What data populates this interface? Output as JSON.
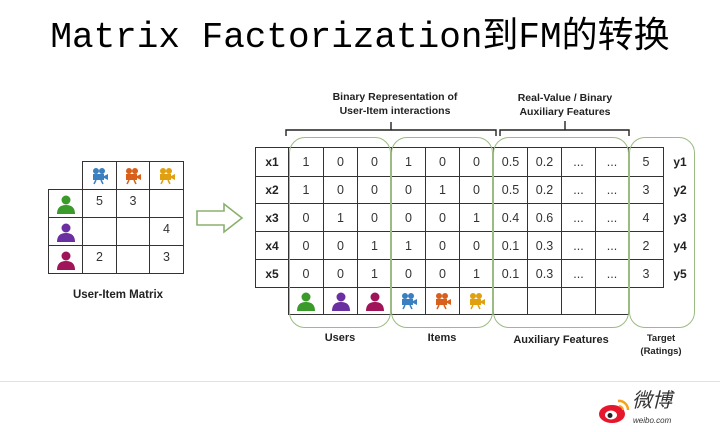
{
  "title": "Matrix Factorization到FM的转换",
  "colors": {
    "user1": "#3a9a2a",
    "user2": "#6a2fa0",
    "user3": "#a0145a",
    "item1": "#3a7fc0",
    "item2": "#d8601a",
    "item3": "#e0a010",
    "group_border": "#9bbb82",
    "divider": "#d6e6ee"
  },
  "user_item_matrix": {
    "caption": "User-Item Matrix",
    "column_icons": [
      "camera-icon",
      "camera-icon",
      "camera-icon"
    ],
    "row_icons": [
      "user-icon",
      "user-icon",
      "user-icon"
    ],
    "rows": [
      [
        "5",
        "3",
        ""
      ],
      [
        "",
        "",
        "4"
      ],
      [
        "2",
        "",
        "3"
      ]
    ]
  },
  "arrow": "right-arrow-icon",
  "fm_table": {
    "header_binary": [
      "Binary Representation of",
      "User-Item interactions"
    ],
    "header_aux": [
      "Real-Value / Binary",
      "Auxiliary Features"
    ],
    "row_labels": [
      "x1",
      "x2",
      "x3",
      "x4",
      "x5"
    ],
    "target_labels": [
      "y1",
      "y2",
      "y3",
      "y4",
      "y5"
    ],
    "rows": [
      [
        "1",
        "0",
        "0",
        "1",
        "0",
        "0",
        "0.5",
        "0.2",
        "...",
        "...",
        "5"
      ],
      [
        "1",
        "0",
        "0",
        "0",
        "1",
        "0",
        "0.5",
        "0.2",
        "...",
        "...",
        "3"
      ],
      [
        "0",
        "1",
        "0",
        "0",
        "0",
        "1",
        "0.4",
        "0.6",
        "...",
        "...",
        "4"
      ],
      [
        "0",
        "0",
        "1",
        "1",
        "0",
        "0",
        "0.1",
        "0.3",
        "...",
        "...",
        "2"
      ],
      [
        "0",
        "0",
        "1",
        "0",
        "0",
        "1",
        "0.1",
        "0.3",
        "...",
        "...",
        "3"
      ]
    ],
    "footer_icons": [
      "user-icon",
      "user-icon",
      "user-icon",
      "camera-icon",
      "camera-icon",
      "camera-icon"
    ],
    "group_users": "Users",
    "group_items": "Items",
    "group_aux": "Auxiliary Features",
    "group_target": [
      "Target",
      "(Ratings)"
    ]
  },
  "watermark": {
    "brand": "微博",
    "domain": "weibo.com"
  }
}
